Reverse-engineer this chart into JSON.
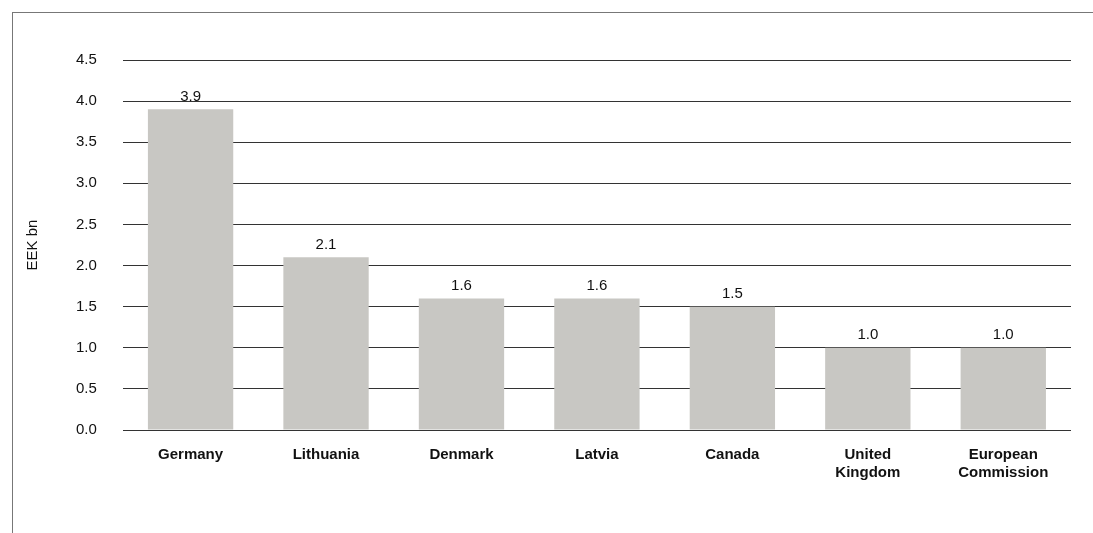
{
  "chart_data": {
    "type": "bar",
    "ylabel": "EEK bn",
    "categories": [
      "Germany",
      "Lithuania",
      "Denmark",
      "Latvia",
      "Canada",
      "United Kingdom",
      "European Commission"
    ],
    "values": [
      3.9,
      2.1,
      1.6,
      1.6,
      1.5,
      1.0,
      1.0
    ],
    "color": "#c8c7c3",
    "ylim": [
      0,
      4.5
    ],
    "yticks": [
      {
        "value": 0,
        "label": "0.0"
      },
      {
        "value": 0.5,
        "label": "0.5"
      },
      {
        "value": 1,
        "label": "1.0"
      },
      {
        "value": 1.5,
        "label": "1.5"
      },
      {
        "value": 2,
        "label": "2.0"
      },
      {
        "value": 2.5,
        "label": "2.5"
      },
      {
        "value": 3,
        "label": "3.0"
      },
      {
        "value": 3.5,
        "label": "3.5"
      },
      {
        "value": 4,
        "label": "4.0"
      },
      {
        "value": 4.5,
        "label": "4.5"
      }
    ],
    "value_labels": [
      "3.9",
      "2.1",
      "1.6",
      "1.6",
      "1.5",
      "1.0",
      "1.0"
    ],
    "grid": "y",
    "legend": false
  }
}
